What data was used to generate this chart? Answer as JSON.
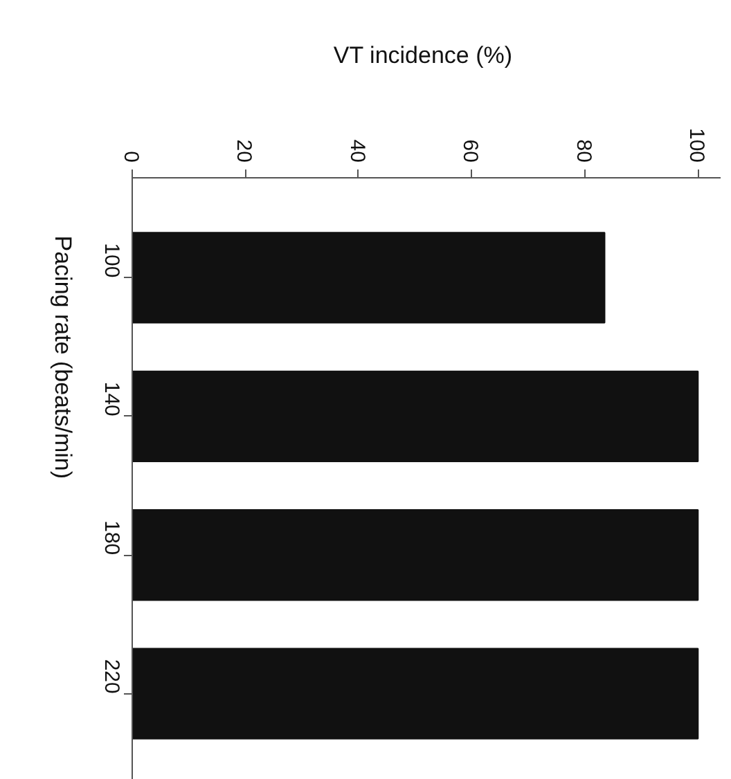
{
  "chart_data": {
    "type": "bar",
    "orientation": "horizontal",
    "xlabel": "VT incidence  (%)",
    "ylabel": "Pacing rate (beats/min)",
    "categories": [
      "100",
      "140",
      "180",
      "220"
    ],
    "values": [
      83.5,
      100,
      100,
      100
    ],
    "color": "#111111",
    "xlim": [
      0,
      104
    ],
    "xticks": [
      0,
      20,
      40,
      60,
      80,
      100
    ],
    "grid": false
  }
}
